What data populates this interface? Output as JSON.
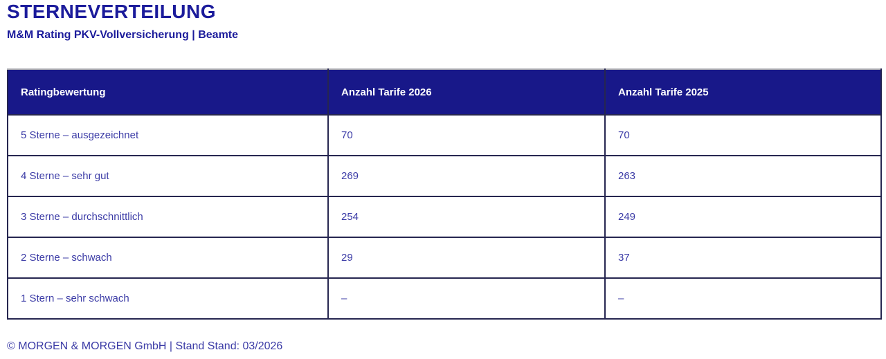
{
  "page": {
    "title": "STERNEVERTEILUNG",
    "subtitle": "M&M Rating PKV-Vollversicherung | Beamte",
    "footer": "© MORGEN & MORGEN GmbH | Stand Stand: 03/2026"
  },
  "colors": {
    "heading_text": "#1b1b9b",
    "table_header_bg": "#181889",
    "table_header_text": "#ffffff",
    "cell_text": "#3b3ba6",
    "table_border": "#262650",
    "table_top_edge": "#a9a9b0",
    "background": "#ffffff"
  },
  "table": {
    "headers": [
      "Ratingbewertung",
      "Anzahl Tarife 2026",
      "Anzahl Tarife 2025"
    ],
    "rows": [
      {
        "label": "5 Sterne – ausgezeichnet",
        "tarife_2026": "70",
        "tarife_2025": "70"
      },
      {
        "label": "4 Sterne – sehr gut",
        "tarife_2026": "269",
        "tarife_2025": "263"
      },
      {
        "label": "3 Sterne – durchschnittlich",
        "tarife_2026": "254",
        "tarife_2025": "249"
      },
      {
        "label": "2 Sterne – schwach",
        "tarife_2026": "29",
        "tarife_2025": "37"
      },
      {
        "label": "1 Stern – sehr schwach",
        "tarife_2026": "–",
        "tarife_2025": "–"
      }
    ]
  },
  "chart_data": {
    "type": "table",
    "title": "STERNEVERTEILUNG",
    "subtitle": "M&M Rating PKV-Vollversicherung | Beamte",
    "columns": [
      "Ratingbewertung",
      "Anzahl Tarife 2026",
      "Anzahl Tarife 2025"
    ],
    "categories": [
      "5 Sterne – ausgezeichnet",
      "4 Sterne – sehr gut",
      "3 Sterne – durchschnittlich",
      "2 Sterne – schwach",
      "1 Stern – sehr schwach"
    ],
    "series": [
      {
        "name": "Anzahl Tarife 2026",
        "values": [
          70,
          269,
          254,
          29,
          null
        ]
      },
      {
        "name": "Anzahl Tarife 2025",
        "values": [
          70,
          263,
          249,
          37,
          null
        ]
      }
    ],
    "missing_value_symbol": "–",
    "footnote": "© MORGEN & MORGEN GmbH | Stand Stand: 03/2026"
  }
}
